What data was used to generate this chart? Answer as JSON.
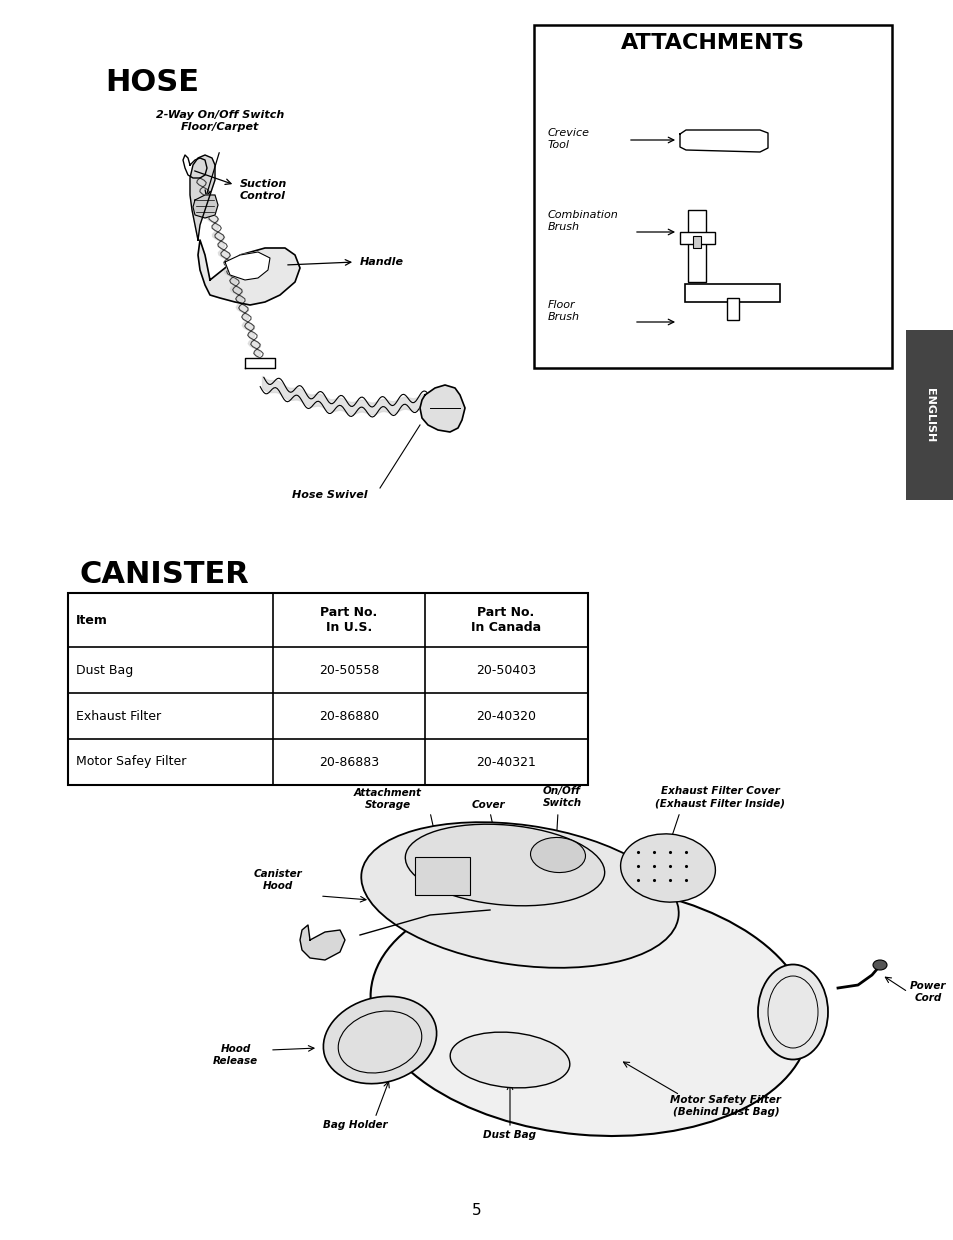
{
  "page_bg": "#ffffff",
  "hose_title": "HOSE",
  "attachments_title": "ATTACHMENTS",
  "canister_title": "CANISTER",
  "table_headers": [
    "Item",
    "Part No.\nIn U.S.",
    "Part No.\nIn Canada"
  ],
  "table_rows": [
    [
      "Dust Bag",
      "20-50558",
      "20-50403"
    ],
    [
      "Exhaust Filter",
      "20-86880",
      "20-40320"
    ],
    [
      "Motor Safey Filter",
      "20-86883",
      "20-40321"
    ]
  ],
  "page_number": "5",
  "english_tab_color": "#555555"
}
